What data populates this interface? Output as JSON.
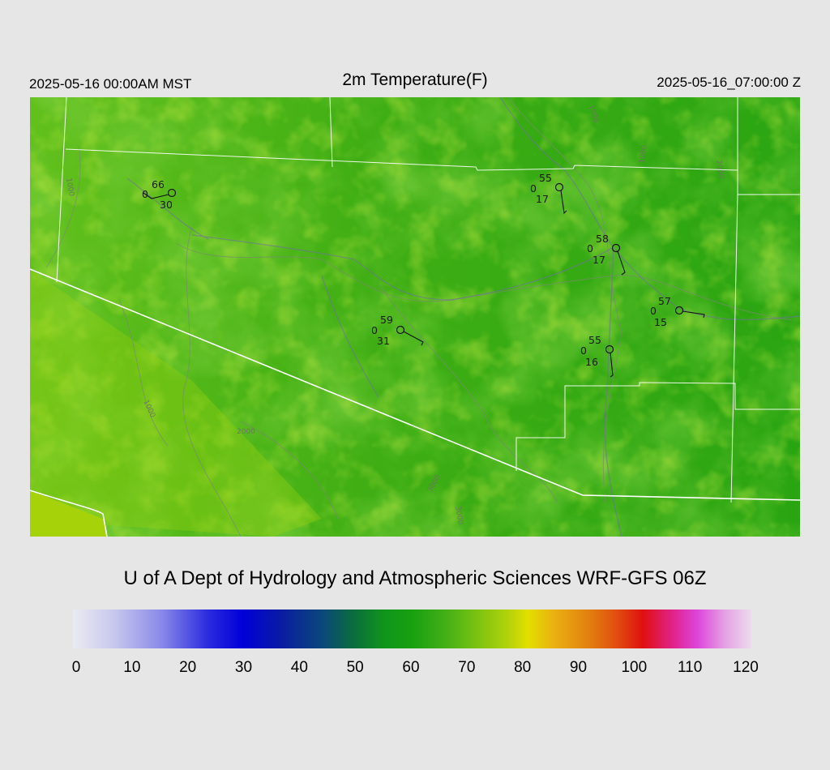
{
  "header": {
    "local_time": "2025-05-16 00:00AM MST",
    "title": "2m Temperature(F)",
    "utc_time": "2025-05-16_07:00:00 Z"
  },
  "credit": "U of A Dept of Hydrology and Atmospheric Sciences WRF-GFS 06Z",
  "colorbar": {
    "ticks": [
      "0",
      "10",
      "20",
      "30",
      "40",
      "50",
      "60",
      "70",
      "80",
      "90",
      "100",
      "110",
      "120"
    ],
    "range": [
      0,
      120
    ]
  },
  "contour_labels": [
    "1000",
    "2000",
    "3000",
    "1000",
    "1000",
    "1000",
    "3000",
    "2000"
  ],
  "stations": [
    {
      "temp": "66",
      "mid": "0",
      "dew": "30"
    },
    {
      "temp": "55",
      "mid": "0",
      "dew": "17"
    },
    {
      "temp": "58",
      "mid": "0",
      "dew": "17"
    },
    {
      "temp": "59",
      "mid": "0",
      "dew": "31"
    },
    {
      "temp": "57",
      "mid": "0",
      "dew": "15"
    },
    {
      "temp": "55",
      "mid": "0",
      "dew": "16"
    }
  ],
  "colors": {
    "background": "#e6e6e6",
    "map_green_dark": "#1a9a10",
    "map_green_mid": "#4cb81a",
    "map_green_light": "#8ccf10",
    "boundary": "#ffffff"
  }
}
